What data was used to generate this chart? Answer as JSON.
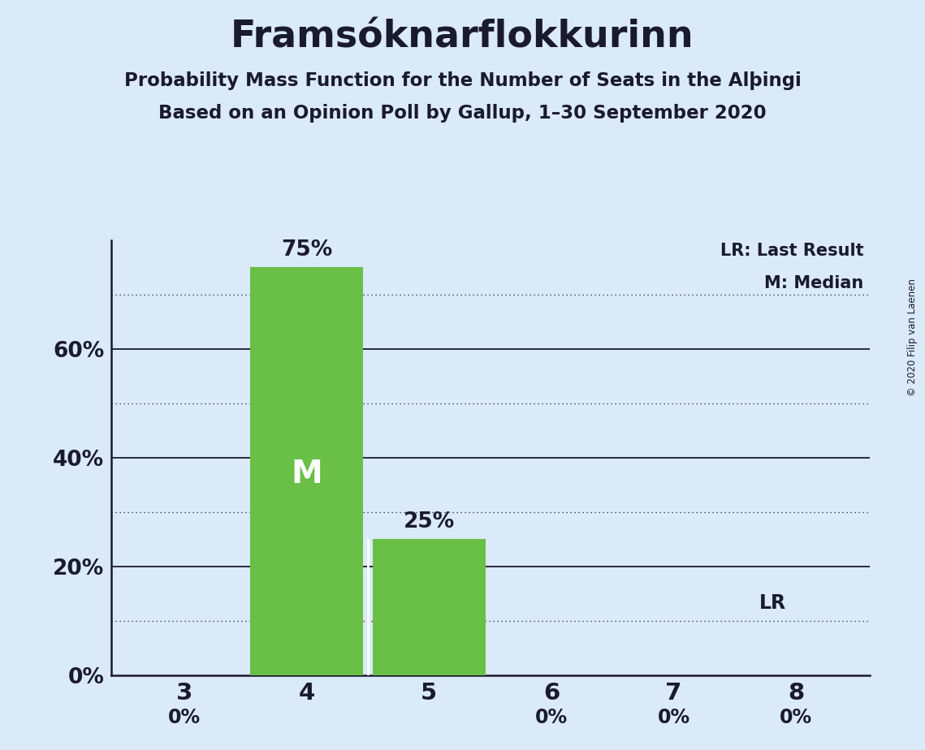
{
  "title": "Framsóknarflokkurinn",
  "subtitle1": "Probability Mass Function for the Number of Seats in the Alþingi",
  "subtitle2": "Based on an Opinion Poll by Gallup, 1–30 September 2020",
  "copyright": "© 2020 Filip van Laenen",
  "categories": [
    3,
    4,
    5,
    6,
    7,
    8
  ],
  "values": [
    0,
    75,
    25,
    0,
    0,
    0
  ],
  "bar_color": "#6abf47",
  "background_color": "#daeaf8",
  "text_color": "#1a1a2e",
  "ylim": [
    0,
    80
  ],
  "yticks_major": [
    0,
    20,
    40,
    60
  ],
  "yticks_minor": [
    10,
    30,
    50,
    70
  ],
  "legend_lr": "LR: Last Result",
  "legend_m": "M: Median"
}
